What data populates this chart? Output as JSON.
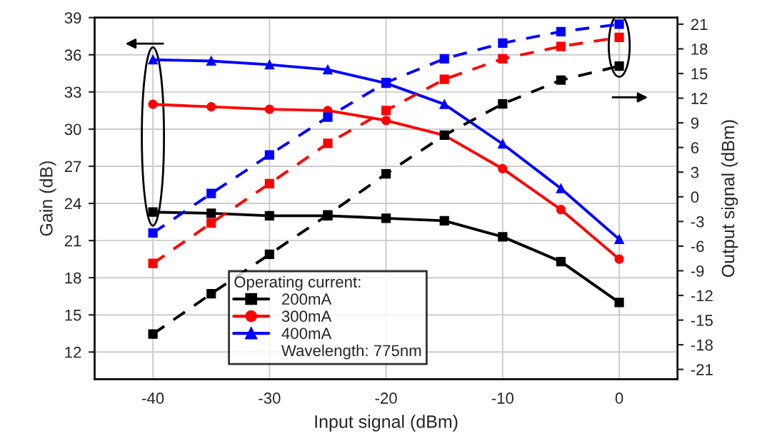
{
  "chart_data": {
    "type": "line",
    "xlabel": "Input signal (dBm)",
    "ylabel": "Gain (dB)",
    "y2label": "Output signal (dBm)",
    "legend_title": "Operating current:",
    "annotations": [
      "Wavelength: 775nm"
    ],
    "x": [
      -40,
      -35,
      -30,
      -25,
      -20,
      -15,
      -10,
      -5,
      0
    ],
    "xlim": [
      -45,
      5
    ],
    "xticks": [
      -40,
      -30,
      -20,
      -10,
      0
    ],
    "ylim": [
      9.8,
      39
    ],
    "yticks": [
      12,
      15,
      18,
      21,
      24,
      27,
      30,
      33,
      36,
      39
    ],
    "y2lim": [
      -22.2,
      21.8
    ],
    "y2ticks": [
      -21,
      -18,
      -15,
      -12,
      -9,
      -6,
      -3,
      0,
      3,
      6,
      9,
      12,
      15,
      18,
      21
    ],
    "grid": true,
    "legend": "bottom",
    "series": [
      {
        "name": "200mA",
        "color": "#000000",
        "marker": "square",
        "line_style": "solid",
        "values": [
          23.3,
          23.2,
          23.0,
          23.0,
          22.8,
          22.6,
          21.3,
          19.3,
          16.0
        ]
      },
      {
        "name": "300mA",
        "color": "#ff0000",
        "marker": "circle",
        "line_style": "solid",
        "values": [
          32.0,
          31.8,
          31.6,
          31.5,
          30.7,
          29.5,
          26.8,
          23.5,
          19.5
        ]
      },
      {
        "name": "400mA",
        "color": "#0000ff",
        "marker": "triangle",
        "line_style": "solid",
        "values": [
          35.6,
          35.5,
          35.2,
          34.8,
          33.7,
          32.0,
          28.8,
          25.2,
          21.1
        ]
      },
      {
        "color": "#000000",
        "marker": "square",
        "line_style": "dashed",
        "axis": "y2",
        "values": [
          -16.7,
          -11.8,
          -7.0,
          -2.2,
          2.8,
          7.5,
          11.3,
          14.2,
          15.9
        ]
      },
      {
        "color": "#ff0000",
        "marker": "square",
        "line_style": "dashed",
        "axis": "y2",
        "values": [
          -8.1,
          -3.2,
          1.6,
          6.5,
          10.5,
          14.3,
          16.8,
          18.3,
          19.4
        ]
      },
      {
        "color": "#0000ff",
        "marker": "square",
        "line_style": "dashed",
        "axis": "y2",
        "values": [
          -4.4,
          0.4,
          5.1,
          9.7,
          13.9,
          16.8,
          18.7,
          20.1,
          21.0
        ]
      }
    ]
  }
}
